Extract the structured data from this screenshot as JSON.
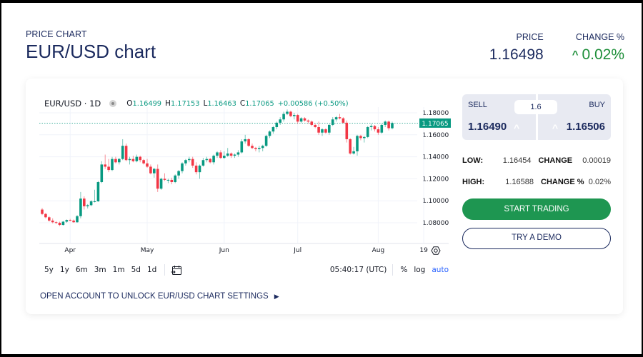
{
  "header": {
    "kicker": "PRICE CHART",
    "title": "EUR/USD chart",
    "price_label": "PRICE",
    "price_value": "1.16498",
    "change_label": "CHANGE %",
    "change_value": "0.02%",
    "change_direction_icon": "caret-up-icon",
    "change_color": "#1e8f3a"
  },
  "chart_legend": {
    "symbol": "EUR/USD · 1D",
    "open_key": "O",
    "open": "1.16499",
    "high_key": "H",
    "high": "1.17153",
    "low_key": "L",
    "low": "1.16463",
    "close_key": "C",
    "close": "1.17065",
    "change": "+0.00586 (+0.50%)"
  },
  "toolbar": {
    "ranges": [
      "5y",
      "1y",
      "6m",
      "3m",
      "1m",
      "5d",
      "1d"
    ],
    "date_range_icon": "calendar-goto-icon",
    "time": "05:40:17 (UTC)",
    "percent": "%",
    "log": "log",
    "auto": "auto",
    "settings_icon": "gear-icon"
  },
  "unlock_link": "OPEN ACCOUNT TO UNLOCK EUR/USD CHART SETTINGS",
  "trade": {
    "sell_label": "SELL",
    "sell_price": "1.16490",
    "buy_label": "BUY",
    "buy_price": "1.16506",
    "spread": "1.6"
  },
  "stats": {
    "low_label": "LOW:",
    "low": "1.16454",
    "change_label": "CHANGE",
    "change": "0.00019",
    "high_label": "HIGH:",
    "high": "1.16588",
    "change_pct_label": "CHANGE %",
    "change_pct": "0.02%"
  },
  "buttons": {
    "start_trading": "START TRADING",
    "try_demo": "TRY A DEMO"
  },
  "colors": {
    "up": "#089981",
    "down": "#f23645",
    "last_price_badge": "#089981",
    "brand_navy": "#1b2a5e",
    "cta_green": "#1e9651"
  },
  "chart_data": {
    "type": "candlestick",
    "title": "EUR/USD · 1D",
    "xlabel": "",
    "ylabel": "",
    "ylim": [
      1.07,
      1.185
    ],
    "y_ticks": [
      1.08,
      1.1,
      1.12,
      1.14,
      1.16,
      1.18
    ],
    "y_tick_labels": [
      "1.08000",
      "1.10000",
      "1.12000",
      "1.14000",
      "1.16000",
      "1.18000"
    ],
    "x_tick_labels": [
      "Apr",
      "May",
      "Jun",
      "Jul",
      "Aug",
      "19"
    ],
    "x_tick_index": [
      8,
      30,
      52,
      73,
      96,
      109
    ],
    "last_price": 1.17065,
    "last_price_label": "1.17065",
    "grid": true,
    "candles": [
      [
        1.092,
        1.0935,
        1.087,
        1.088
      ],
      [
        1.088,
        1.089,
        1.084,
        1.085
      ],
      [
        1.085,
        1.086,
        1.081,
        1.082
      ],
      [
        1.082,
        1.084,
        1.0795,
        1.0805
      ],
      [
        1.0805,
        1.0815,
        1.079,
        1.08
      ],
      [
        1.08,
        1.081,
        1.077,
        1.078
      ],
      [
        1.078,
        1.0815,
        1.0775,
        1.081
      ],
      [
        1.081,
        1.083,
        1.08,
        1.0825
      ],
      [
        1.0825,
        1.0835,
        1.0815,
        1.082
      ],
      [
        1.082,
        1.083,
        1.08,
        1.0805
      ],
      [
        1.0805,
        1.087,
        1.08,
        1.086
      ],
      [
        1.086,
        1.108,
        1.084,
        1.102
      ],
      [
        1.102,
        1.104,
        1.092,
        1.095
      ],
      [
        1.095,
        1.097,
        1.093,
        1.096
      ],
      [
        1.096,
        1.1005,
        1.095,
        1.0995
      ],
      [
        1.0995,
        1.11,
        1.0985,
        1.0995
      ],
      [
        1.0995,
        1.118,
        1.099,
        1.117
      ],
      [
        1.117,
        1.136,
        1.116,
        1.133
      ],
      [
        1.133,
        1.142,
        1.129,
        1.131
      ],
      [
        1.131,
        1.138,
        1.126,
        1.128
      ],
      [
        1.128,
        1.14,
        1.127,
        1.138
      ],
      [
        1.138,
        1.14,
        1.134,
        1.135
      ],
      [
        1.135,
        1.139,
        1.133,
        1.138
      ],
      [
        1.138,
        1.156,
        1.137,
        1.15
      ],
      [
        1.15,
        1.152,
        1.136,
        1.137
      ],
      [
        1.137,
        1.14,
        1.133,
        1.138
      ],
      [
        1.138,
        1.141,
        1.135,
        1.136
      ],
      [
        1.136,
        1.142,
        1.135,
        1.14
      ],
      [
        1.14,
        1.141,
        1.135,
        1.137
      ],
      [
        1.137,
        1.138,
        1.133,
        1.134
      ],
      [
        1.134,
        1.138,
        1.13,
        1.131
      ],
      [
        1.131,
        1.133,
        1.124,
        1.125
      ],
      [
        1.125,
        1.13,
        1.121,
        1.129
      ],
      [
        1.129,
        1.133,
        1.108,
        1.111
      ],
      [
        1.111,
        1.121,
        1.11,
        1.12
      ],
      [
        1.12,
        1.125,
        1.118,
        1.119
      ],
      [
        1.119,
        1.12,
        1.116,
        1.119
      ],
      [
        1.119,
        1.121,
        1.115,
        1.117
      ],
      [
        1.117,
        1.124,
        1.116,
        1.123
      ],
      [
        1.123,
        1.128,
        1.12,
        1.127
      ],
      [
        1.127,
        1.135,
        1.125,
        1.134
      ],
      [
        1.134,
        1.138,
        1.132,
        1.137
      ],
      [
        1.137,
        1.14,
        1.135,
        1.138
      ],
      [
        1.138,
        1.14,
        1.13,
        1.132
      ],
      [
        1.132,
        1.135,
        1.124,
        1.126
      ],
      [
        1.126,
        1.133,
        1.12,
        1.132
      ],
      [
        1.132,
        1.139,
        1.131,
        1.137
      ],
      [
        1.137,
        1.14,
        1.135,
        1.138
      ],
      [
        1.138,
        1.139,
        1.134,
        1.135
      ],
      [
        1.135,
        1.142,
        1.133,
        1.141
      ],
      [
        1.141,
        1.145,
        1.139,
        1.144
      ],
      [
        1.144,
        1.146,
        1.138,
        1.139
      ],
      [
        1.139,
        1.145,
        1.138,
        1.141
      ],
      [
        1.141,
        1.148,
        1.14,
        1.143
      ],
      [
        1.143,
        1.144,
        1.139,
        1.141
      ],
      [
        1.141,
        1.143,
        1.139,
        1.142
      ],
      [
        1.142,
        1.146,
        1.14,
        1.144
      ],
      [
        1.144,
        1.156,
        1.143,
        1.154
      ],
      [
        1.154,
        1.16,
        1.152,
        1.156
      ],
      [
        1.156,
        1.157,
        1.149,
        1.15
      ],
      [
        1.15,
        1.152,
        1.147,
        1.148
      ],
      [
        1.148,
        1.149,
        1.145,
        1.147
      ],
      [
        1.147,
        1.15,
        1.144,
        1.148
      ],
      [
        1.148,
        1.151,
        1.145,
        1.15
      ],
      [
        1.15,
        1.16,
        1.149,
        1.159
      ],
      [
        1.159,
        1.164,
        1.157,
        1.163
      ],
      [
        1.163,
        1.168,
        1.161,
        1.167
      ],
      [
        1.167,
        1.172,
        1.165,
        1.171
      ],
      [
        1.171,
        1.176,
        1.169,
        1.174
      ],
      [
        1.174,
        1.181,
        1.172,
        1.179
      ],
      [
        1.179,
        1.183,
        1.178,
        1.181
      ],
      [
        1.181,
        1.182,
        1.176,
        1.177
      ],
      [
        1.177,
        1.18,
        1.174,
        1.178
      ],
      [
        1.178,
        1.179,
        1.17,
        1.172
      ],
      [
        1.172,
        1.176,
        1.171,
        1.175
      ],
      [
        1.175,
        1.176,
        1.172,
        1.173
      ],
      [
        1.173,
        1.174,
        1.17,
        1.172
      ],
      [
        1.172,
        1.173,
        1.168,
        1.169
      ],
      [
        1.169,
        1.17,
        1.166,
        1.167
      ],
      [
        1.167,
        1.172,
        1.16,
        1.162
      ],
      [
        1.162,
        1.166,
        1.159,
        1.165
      ],
      [
        1.165,
        1.166,
        1.161,
        1.162
      ],
      [
        1.162,
        1.17,
        1.16,
        1.169
      ],
      [
        1.169,
        1.176,
        1.168,
        1.174
      ],
      [
        1.174,
        1.177,
        1.172,
        1.176
      ],
      [
        1.176,
        1.179,
        1.174,
        1.175
      ],
      [
        1.175,
        1.176,
        1.17,
        1.171
      ],
      [
        1.171,
        1.173,
        1.153,
        1.156
      ],
      [
        1.156,
        1.157,
        1.142,
        1.143
      ],
      [
        1.143,
        1.149,
        1.142,
        1.145
      ],
      [
        1.145,
        1.16,
        1.141,
        1.159
      ],
      [
        1.159,
        1.16,
        1.155,
        1.157
      ],
      [
        1.157,
        1.159,
        1.153,
        1.158
      ],
      [
        1.158,
        1.168,
        1.157,
        1.167
      ],
      [
        1.167,
        1.17,
        1.164,
        1.168
      ],
      [
        1.168,
        1.169,
        1.163,
        1.165
      ],
      [
        1.165,
        1.167,
        1.16,
        1.162
      ],
      [
        1.162,
        1.17,
        1.161,
        1.169
      ],
      [
        1.169,
        1.173,
        1.167,
        1.172
      ],
      [
        1.172,
        1.173,
        1.164,
        1.166
      ],
      [
        1.166,
        1.172,
        1.165,
        1.1707
      ]
    ]
  }
}
